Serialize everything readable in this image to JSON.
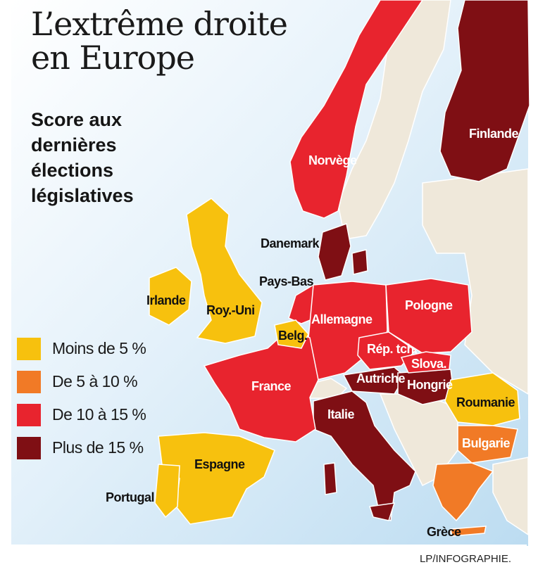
{
  "title_line1": "L’extrême droite",
  "title_line2": "en Europe",
  "subtitle": {
    "line1": "Score aux",
    "line2": "dernières",
    "line3": "élections",
    "line4": "législatives"
  },
  "legend": [
    {
      "label": "Moins de 5 %",
      "color": "#f7c10e"
    },
    {
      "label": "De 5 à 10 %",
      "color": "#f17a26"
    },
    {
      "label": "De 10 à 15 %",
      "color": "#e8242e"
    },
    {
      "label": "Plus de 15 %",
      "color": "#7f0f14"
    }
  ],
  "countries": {
    "norvege": "Norvège",
    "finlande": "Finlande",
    "danemark": "Danemark",
    "pays_bas": "Pays-Bas",
    "irlande": "Irlande",
    "roy_uni": "Roy.-Uni",
    "belgique": "Belg.",
    "allemagne": "Allemagne",
    "pologne": "Pologne",
    "rep_tch": "Rép. tch.",
    "slovaquie": "Slova.",
    "autriche": "Autriche",
    "hongrie": "Hongrie",
    "france": "France",
    "italie": "Italie",
    "roumanie": "Roumanie",
    "bulgarie": "Bulgarie",
    "espagne": "Espagne",
    "portugal": "Portugal",
    "grece": "Grèce"
  },
  "credit": "LP/INFOGRAPHIE."
}
